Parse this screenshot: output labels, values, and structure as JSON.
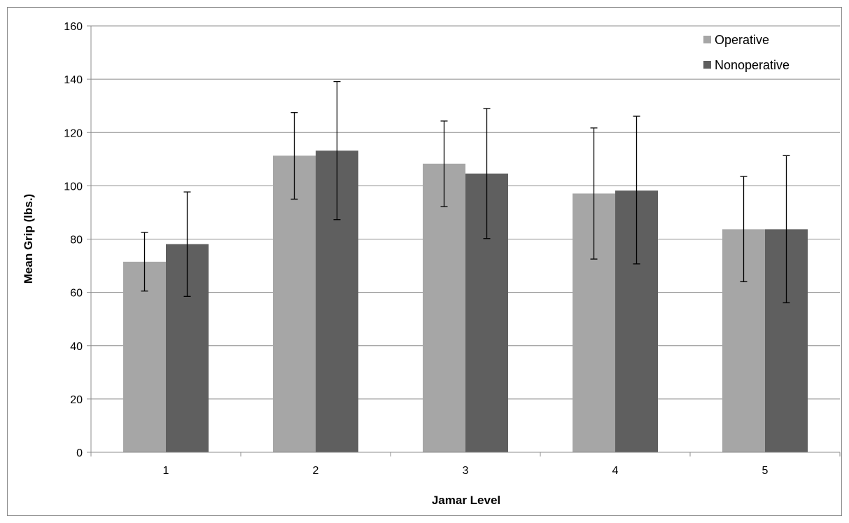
{
  "chart_data": {
    "type": "bar",
    "title": "",
    "xlabel": "Jamar Level",
    "ylabel": "Mean Grip (lbs.)",
    "categories": [
      "1",
      "2",
      "3",
      "4",
      "5"
    ],
    "ylim": [
      0,
      160
    ],
    "yticks": [
      0,
      20,
      40,
      60,
      80,
      100,
      120,
      140,
      160
    ],
    "grid": true,
    "legend_position": "top-right",
    "series": [
      {
        "name": "Operative",
        "color": "#a6a6a6",
        "values": [
          71.5,
          111.3,
          108.3,
          97.1,
          83.7
        ],
        "error_low": [
          60.5,
          95.0,
          92.2,
          72.5,
          64.0
        ],
        "error_high": [
          82.5,
          127.5,
          124.3,
          121.7,
          103.5
        ]
      },
      {
        "name": "Nonoperative",
        "color": "#5f5f5f",
        "values": [
          78.1,
          113.2,
          104.6,
          98.2,
          83.7
        ],
        "error_low": [
          58.5,
          87.3,
          80.2,
          70.7,
          56.1
        ],
        "error_high": [
          97.7,
          139.1,
          129.0,
          126.1,
          111.3
        ]
      }
    ]
  }
}
